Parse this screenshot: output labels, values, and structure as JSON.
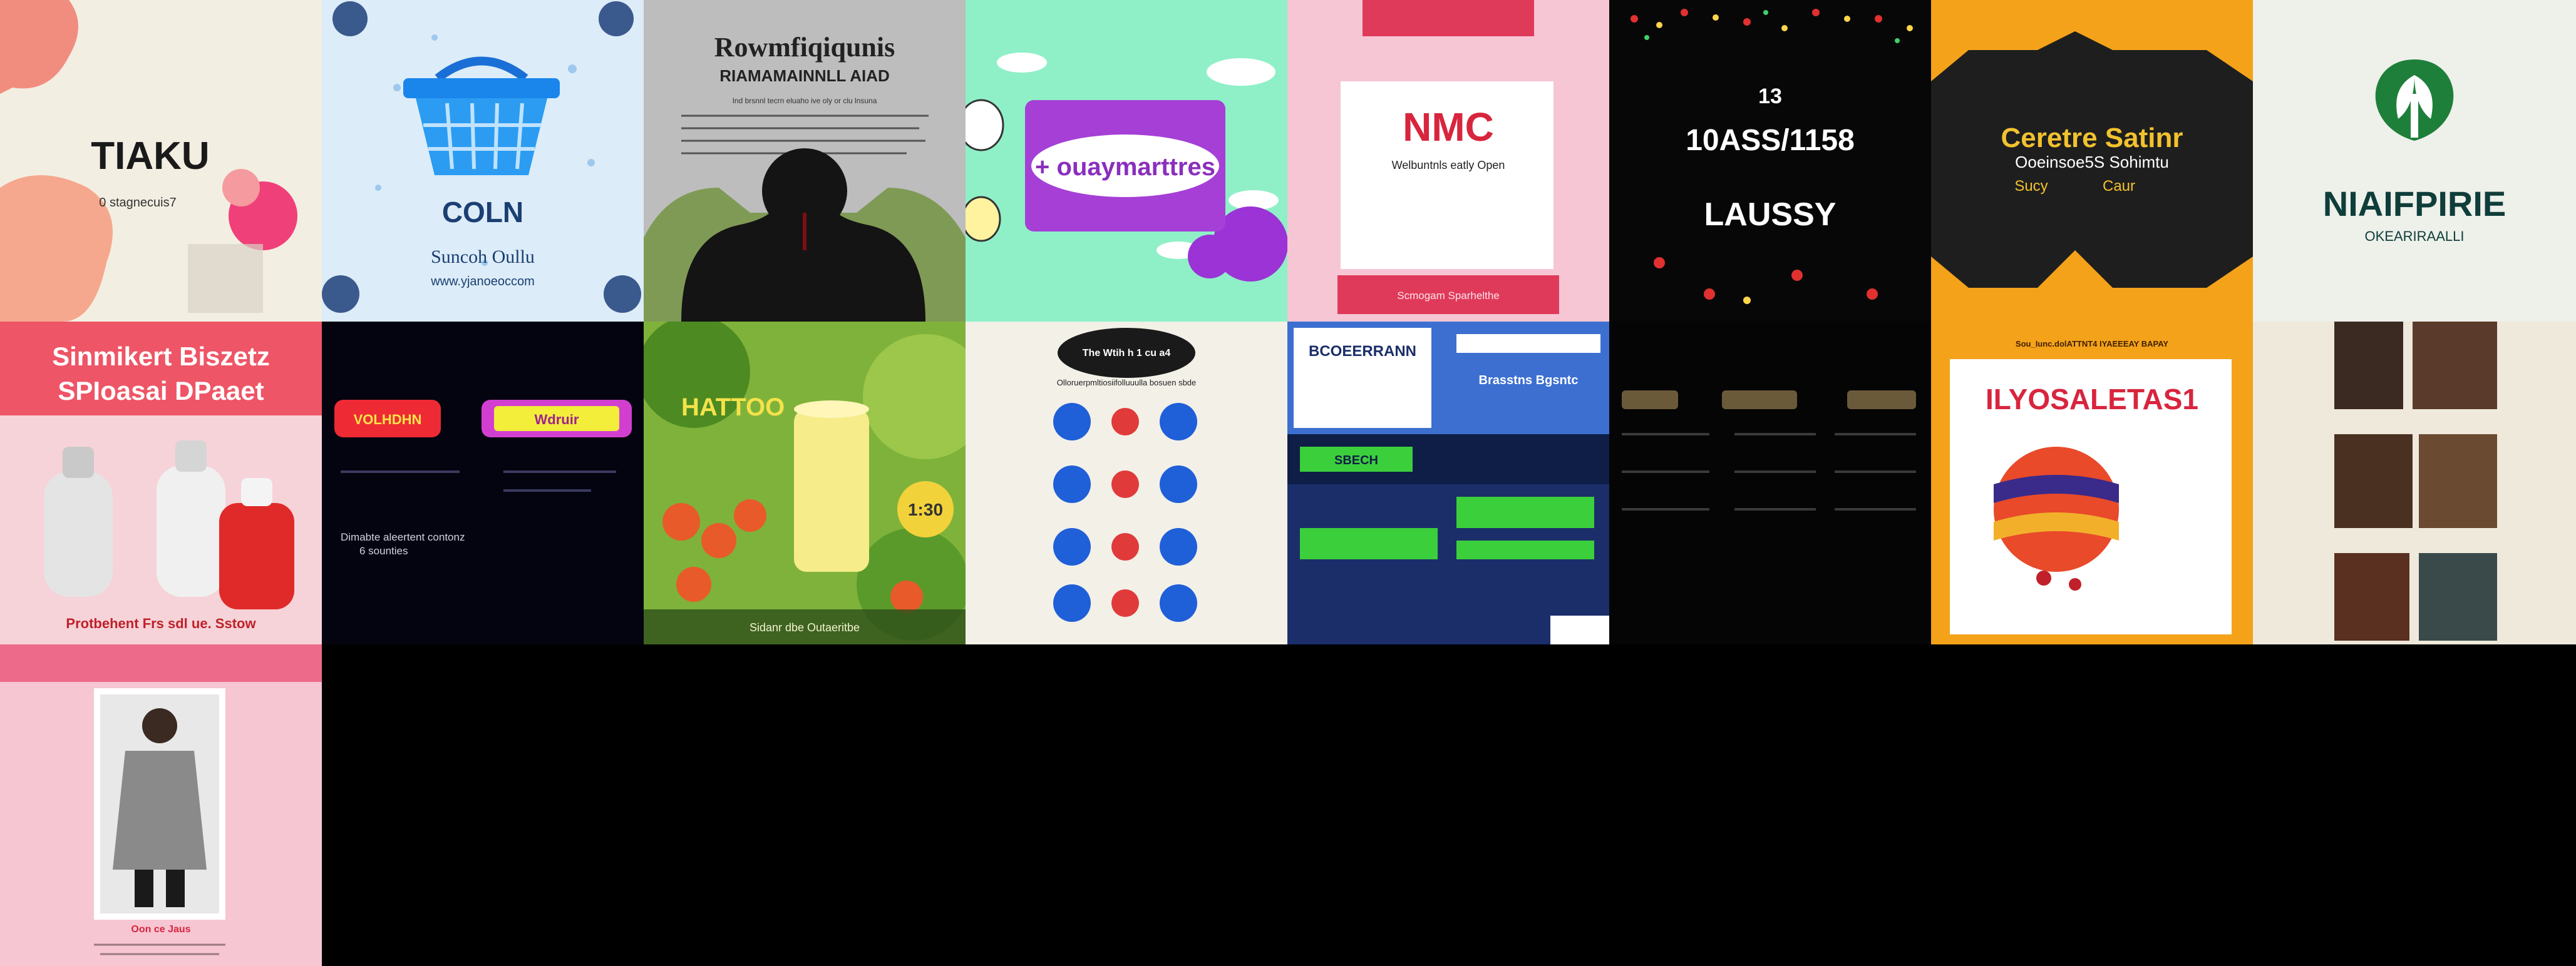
{
  "tiles": [
    {
      "id": "t1",
      "title": "TIAKU",
      "subtitle": "0 stagnecuis7"
    },
    {
      "id": "t2",
      "title": "COLN",
      "subtitle": "Suncoh Oullu",
      "url": "www.yjanoeoccom"
    },
    {
      "id": "t3",
      "title": "Rowmfiqiqunis",
      "subtitle": "RIAMAMAINNLL AIAD",
      "body": "Ind brsnnl tecrn eluaho ive oly or clu lnsuna"
    },
    {
      "id": "t4",
      "title": "+ ouaymarttres"
    },
    {
      "id": "t5",
      "title": "NMC",
      "subtitle": "Welbuntnls eatly Open",
      "footer": "Scmogam Sparhelthe"
    },
    {
      "id": "t6",
      "line1": "13",
      "line2": "10ASS/1158",
      "line3": "LAUSSY"
    },
    {
      "id": "t7",
      "title": "Ceretre Satinr",
      "subtitle": "Ooeinsoe5S Sohimtu",
      "tag1": "Sucy",
      "tag2": "Caur"
    },
    {
      "id": "t8",
      "title": "NIAIFPIRIE",
      "subtitle": "OKEARIRAALLI"
    },
    {
      "id": "t9",
      "line1": "Sinmikert Biszetz",
      "line2": "SPIoasai DPaaet",
      "footer": "Protbehent Frs sdl ue. Sstow"
    },
    {
      "id": "t10",
      "button1": "VOLHDHN",
      "button2": "Wdruir",
      "text1": "Dimabte aleertent contonz",
      "text2": "6 sounties"
    },
    {
      "id": "t11",
      "title": "HATTOO",
      "badge": "1:30",
      "footer": "Sidanr dbe Outaeritbe"
    },
    {
      "id": "t12",
      "title": "The Wtih h 1 cu a4",
      "subtitle": "Olloruerpmltiosiifolluuulla bosuen sbde"
    },
    {
      "id": "t13",
      "title": "BCOEERRANN",
      "subtitle": "Brasstns Bgsntc",
      "label": "SBECH"
    },
    {
      "id": "t14"
    },
    {
      "id": "t15",
      "title": "ILYOSALETAS1",
      "header": "Sou_Iunc.dolATTNT4 IYAEEEAY BAPAY"
    },
    {
      "id": "t16"
    },
    {
      "id": "t17",
      "title": "Oon ce Jaus"
    }
  ]
}
